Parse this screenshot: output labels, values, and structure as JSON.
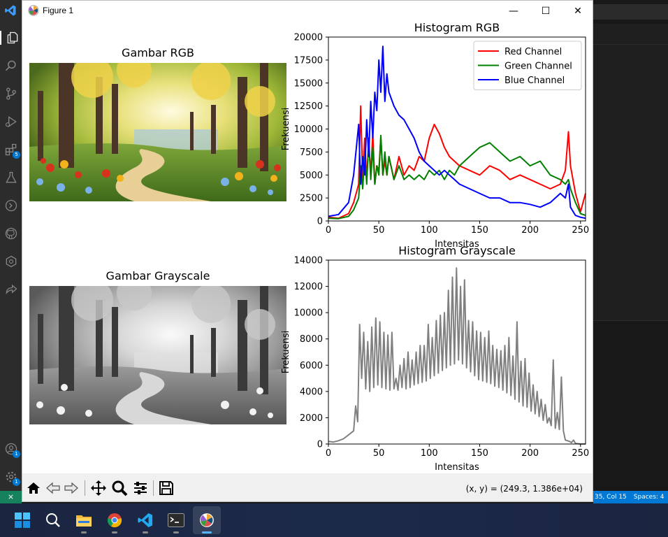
{
  "window": {
    "title": "Figure 1"
  },
  "title_controls": {
    "minimize": "—",
    "maximize": "☐",
    "close": "✕"
  },
  "subplots": {
    "rgb_image_title": "Gambar RGB",
    "gray_image_title": "Gambar Grayscale"
  },
  "toolbar": {
    "coords": "(x, y) = (249.3, 1.386e+04)"
  },
  "statusbar": {
    "position": "35, Col 15",
    "spaces": "Spaces: 4"
  },
  "activity_badges": {
    "extensions": "5",
    "accounts": "1",
    "manage": "1"
  },
  "taskbar_apps": [
    "Start",
    "Search",
    "File Explorer",
    "Google Chrome",
    "Visual Studio Code",
    "Terminal",
    "Figure 1 (Python)"
  ],
  "chart_data": [
    {
      "type": "line",
      "title": "Histogram RGB",
      "xlabel": "Intensitas",
      "ylabel": "Frekuensi",
      "xlim": [
        0,
        255
      ],
      "ylim": [
        0,
        20000
      ],
      "xticks": [
        "0",
        "50",
        "100",
        "150",
        "200",
        "250"
      ],
      "yticks": [
        "0",
        "2500",
        "5000",
        "7500",
        "10000",
        "12500",
        "15000",
        "17500",
        "20000"
      ],
      "legend": "top-right",
      "x": [
        0,
        10,
        20,
        25,
        30,
        32,
        34,
        36,
        38,
        40,
        42,
        44,
        46,
        48,
        50,
        52,
        54,
        56,
        58,
        60,
        65,
        70,
        75,
        80,
        85,
        90,
        95,
        100,
        105,
        110,
        115,
        120,
        125,
        130,
        140,
        150,
        160,
        170,
        180,
        190,
        200,
        210,
        220,
        230,
        235,
        238,
        240,
        245,
        250,
        255
      ],
      "series": [
        {
          "name": "Red Channel",
          "color": "#ff0000",
          "values": [
            400,
            300,
            800,
            2000,
            4000,
            12500,
            4500,
            9000,
            4500,
            8500,
            5000,
            9500,
            4000,
            6000,
            5500,
            9000,
            5000,
            6500,
            5000,
            7000,
            4500,
            7000,
            5000,
            6000,
            5500,
            7000,
            6500,
            9000,
            10500,
            9500,
            8000,
            7000,
            6500,
            6000,
            5500,
            5000,
            6000,
            5500,
            4500,
            5000,
            4500,
            4000,
            3500,
            4000,
            5500,
            9700,
            6000,
            3000,
            1000,
            3000
          ]
        },
        {
          "name": "Green Channel",
          "color": "#008000",
          "values": [
            300,
            250,
            500,
            1200,
            2500,
            6000,
            3500,
            7500,
            4000,
            9000,
            4500,
            8000,
            4000,
            6000,
            5000,
            9300,
            5000,
            7500,
            5000,
            7000,
            4500,
            6000,
            4500,
            5000,
            4500,
            5000,
            4500,
            5500,
            5000,
            5500,
            4500,
            5500,
            5000,
            6000,
            7000,
            8000,
            8500,
            7500,
            6500,
            7000,
            6000,
            6500,
            5000,
            4500,
            4000,
            4500,
            3500,
            2000,
            800,
            600
          ]
        },
        {
          "name": "Blue Channel",
          "color": "#0000ff",
          "values": [
            500,
            700,
            2000,
            5000,
            10500,
            4000,
            7000,
            5000,
            11000,
            7000,
            13000,
            9000,
            14000,
            12000,
            17500,
            14000,
            19000,
            13000,
            16000,
            14000,
            12500,
            11500,
            11000,
            10000,
            9000,
            7500,
            6500,
            6000,
            5500,
            5000,
            5500,
            5000,
            4500,
            4000,
            3500,
            3000,
            2500,
            2500,
            2000,
            2000,
            1800,
            1500,
            2000,
            3000,
            2500,
            4000,
            1500,
            600,
            400,
            300
          ]
        }
      ]
    },
    {
      "type": "line",
      "title": "Histogram Grayscale",
      "xlabel": "Intensitas",
      "ylabel": "Frekuensi",
      "xlim": [
        0,
        255
      ],
      "ylim": [
        0,
        14000
      ],
      "xticks": [
        "0",
        "50",
        "100",
        "150",
        "200",
        "250"
      ],
      "yticks": [
        "0",
        "2000",
        "4000",
        "6000",
        "8000",
        "10000",
        "12000",
        "14000"
      ],
      "series": [
        {
          "name": "",
          "color": "#808080",
          "x": [
            0,
            5,
            10,
            15,
            20,
            25,
            27,
            29,
            31,
            33,
            35,
            37,
            39,
            41,
            43,
            45,
            47,
            49,
            51,
            53,
            55,
            57,
            59,
            61,
            63,
            65,
            67,
            69,
            71,
            73,
            75,
            77,
            79,
            81,
            83,
            85,
            87,
            89,
            91,
            93,
            95,
            97,
            99,
            101,
            103,
            105,
            107,
            109,
            111,
            113,
            115,
            117,
            119,
            121,
            123,
            125,
            127,
            129,
            131,
            133,
            135,
            137,
            139,
            141,
            143,
            145,
            147,
            149,
            151,
            153,
            155,
            157,
            159,
            161,
            163,
            165,
            167,
            169,
            171,
            173,
            175,
            177,
            179,
            181,
            183,
            185,
            187,
            189,
            191,
            193,
            195,
            197,
            199,
            201,
            203,
            205,
            207,
            209,
            211,
            213,
            215,
            217,
            219,
            221,
            223,
            225,
            227,
            229,
            231,
            233,
            235,
            237,
            239,
            241,
            243,
            245,
            250,
            255
          ],
          "values": [
            200,
            150,
            250,
            400,
            700,
            1000,
            2900,
            1700,
            9100,
            5000,
            8500,
            4200,
            7800,
            4000,
            8900,
            4300,
            9600,
            4500,
            9300,
            4300,
            8500,
            4200,
            8300,
            4100,
            8500,
            4200,
            5000,
            4100,
            6000,
            4300,
            6500,
            4200,
            7000,
            4300,
            6400,
            4500,
            7000,
            4600,
            7500,
            4700,
            7500,
            4800,
            9100,
            5000,
            8100,
            5200,
            9400,
            5400,
            9800,
            5600,
            10000,
            5800,
            11700,
            6000,
            12700,
            6100,
            13400,
            6400,
            12000,
            6100,
            12500,
            5800,
            9400,
            5500,
            9300,
            5200,
            8600,
            4900,
            8500,
            4800,
            8100,
            4700,
            8600,
            4600,
            7500,
            4400,
            7200,
            4300,
            7100,
            4100,
            7500,
            3900,
            8100,
            3700,
            6700,
            3400,
            9300,
            3200,
            6300,
            2900,
            6500,
            2800,
            5400,
            2500,
            4500,
            2300,
            4000,
            2100,
            3400,
            1800,
            3000,
            1600,
            2000,
            1400,
            6400,
            1200,
            2400,
            1100,
            5100,
            1000,
            300,
            250,
            200,
            100,
            300,
            50,
            0,
            0
          ]
        }
      ]
    }
  ]
}
